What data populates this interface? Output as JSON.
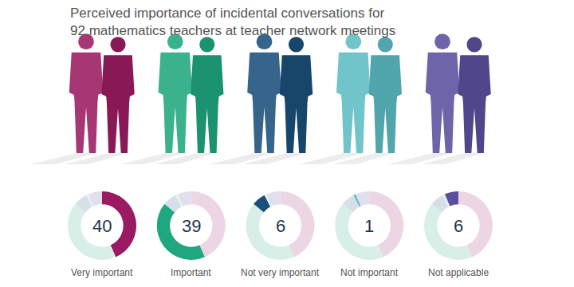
{
  "chart_data": {
    "type": "pie",
    "title": "Perceived importance of incidental conversations for 92 mathematics teachers at teacher network meetings",
    "categories": [
      "Very important",
      "Important",
      "Not very important",
      "Not important",
      "Not applicable"
    ],
    "values": [
      40,
      39,
      6,
      1,
      6
    ],
    "colors": [
      "#9b1b62",
      "#1fa77f",
      "#1b4f7a",
      "#5cbcc3",
      "#5a4f9e"
    ],
    "data_labels": true
  }
}
